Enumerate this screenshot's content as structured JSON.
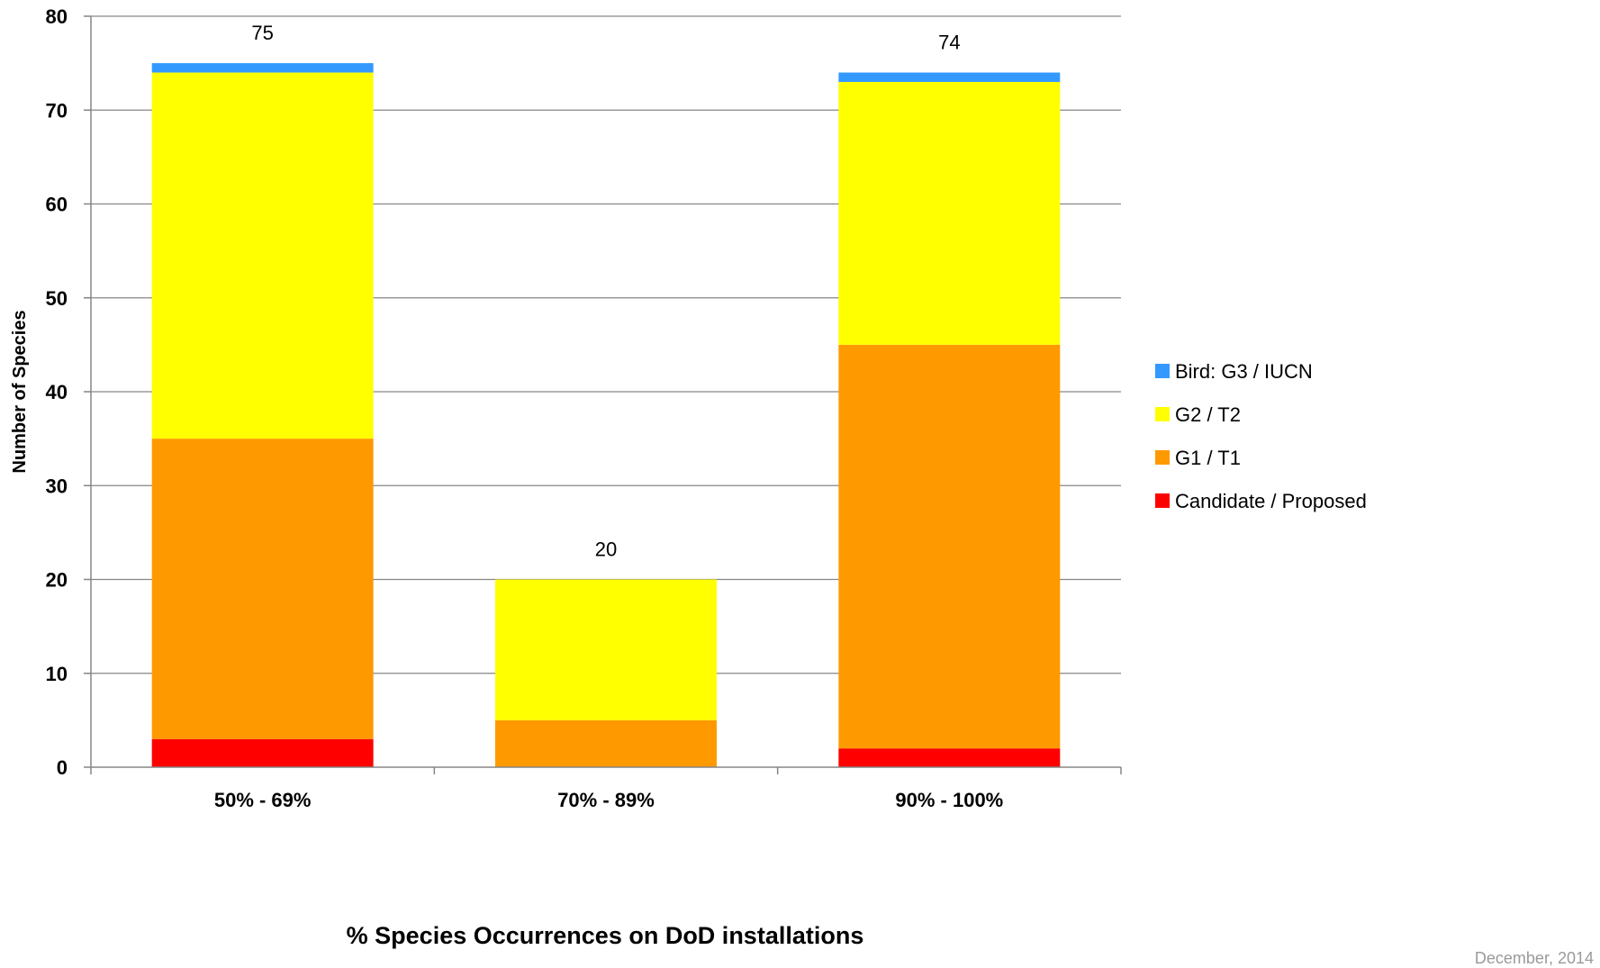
{
  "chart_data": {
    "type": "bar",
    "stacked": true,
    "xlabel": "% Species Occurrences on DoD installations",
    "ylabel": "Number of Species",
    "ylim": [
      0,
      80
    ],
    "yticks": [
      0,
      10,
      20,
      30,
      40,
      50,
      60,
      70,
      80
    ],
    "grid": true,
    "legend_position": "right",
    "categories": [
      "50% - 69%",
      "70% - 89%",
      "90% - 100%"
    ],
    "series": [
      {
        "name": "Candidate / Proposed",
        "color": "#ff0000",
        "values": [
          3,
          0,
          2
        ]
      },
      {
        "name": "G1 / T1",
        "color": "#ff9900",
        "values": [
          32,
          5,
          43
        ]
      },
      {
        "name": "G2 / T2",
        "color": "#ffff00",
        "values": [
          39,
          15,
          28
        ]
      },
      {
        "name": "Bird: G3 / IUCN",
        "color": "#3399ff",
        "values": [
          1,
          0,
          1
        ]
      }
    ],
    "totals": [
      "75",
      "20",
      "74"
    ],
    "legend_order": [
      "Bird: G3 / IUCN",
      "G2 / T2",
      "G1 / T1",
      "Candidate / Proposed"
    ]
  },
  "footer": {
    "date_text": "December, 2014"
  }
}
